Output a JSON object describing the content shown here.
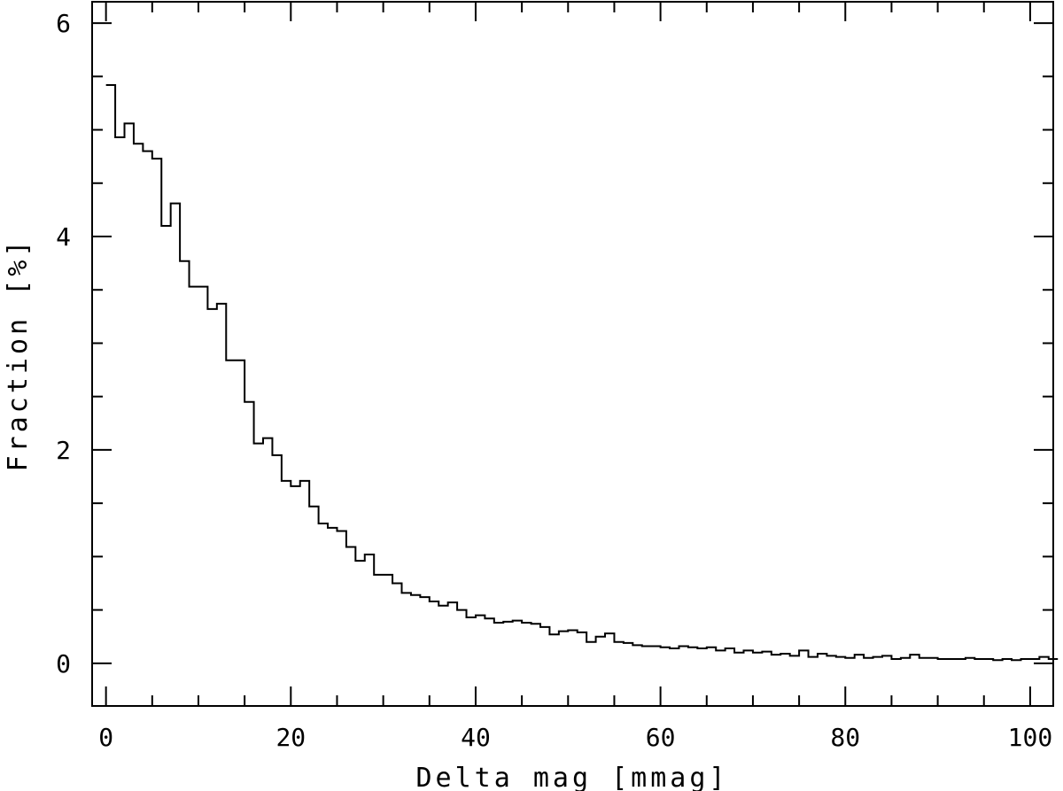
{
  "chart_data": {
    "type": "step",
    "xlabel": "Delta mag [mmag]",
    "ylabel": "Fraction [%]",
    "xlim": [
      -1.5,
      102.5
    ],
    "ylim": [
      -0.4,
      6.2
    ],
    "x_ticks": [
      0,
      20,
      40,
      60,
      80,
      100
    ],
    "y_ticks": [
      0,
      2,
      4,
      6
    ],
    "grid": false,
    "bin_width": 1.0,
    "bin_start": 0.0,
    "values": [
      5.42,
      4.93,
      5.06,
      4.87,
      4.8,
      4.73,
      4.1,
      4.31,
      3.77,
      3.53,
      3.53,
      3.32,
      3.37,
      2.84,
      2.84,
      2.45,
      2.06,
      2.11,
      1.95,
      1.71,
      1.66,
      1.71,
      1.47,
      1.31,
      1.27,
      1.24,
      1.09,
      0.96,
      1.02,
      0.83,
      0.83,
      0.75,
      0.66,
      0.64,
      0.62,
      0.58,
      0.54,
      0.57,
      0.5,
      0.43,
      0.45,
      0.42,
      0.38,
      0.39,
      0.4,
      0.38,
      0.37,
      0.34,
      0.27,
      0.3,
      0.31,
      0.29,
      0.2,
      0.25,
      0.28,
      0.2,
      0.19,
      0.17,
      0.16,
      0.16,
      0.15,
      0.14,
      0.16,
      0.15,
      0.14,
      0.15,
      0.12,
      0.14,
      0.1,
      0.12,
      0.1,
      0.11,
      0.08,
      0.09,
      0.07,
      0.12,
      0.06,
      0.09,
      0.07,
      0.06,
      0.05,
      0.08,
      0.05,
      0.06,
      0.07,
      0.04,
      0.05,
      0.08,
      0.05,
      0.05,
      0.04,
      0.04,
      0.04,
      0.05,
      0.04,
      0.04,
      0.03,
      0.04,
      0.03,
      0.04,
      0.04,
      0.06,
      0.04
    ]
  }
}
